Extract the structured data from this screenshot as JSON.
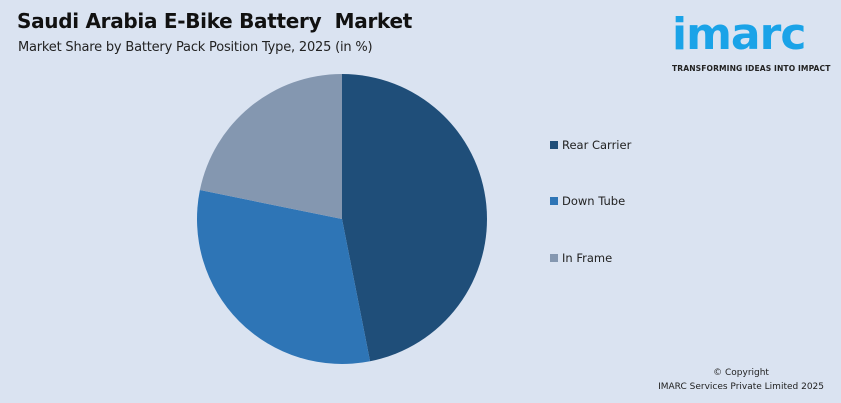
{
  "header": {
    "title": "Saudi Arabia E-Bike Battery  Market",
    "subtitle": "Market Share by Battery Pack Position Type, 2025 (in %)"
  },
  "logo": {
    "wordmark": "imarc",
    "tagline": "TRANSFORMING IDEAS INTO IMPACT",
    "color": "#1aa3e8"
  },
  "legend": {
    "items": [
      {
        "label": "Rear Carrier",
        "color": "#1f4e79"
      },
      {
        "label": "Down Tube",
        "color": "#2e75b6"
      },
      {
        "label": "In Frame",
        "color": "#8497b0"
      }
    ]
  },
  "footer": {
    "copyright_line1": "© Copyright",
    "copyright_line2": "IMARC Services Private Limited 2025"
  },
  "chart_data": {
    "type": "pie",
    "title": "Saudi Arabia E-Bike Battery  Market",
    "subtitle": "Market Share by Battery Pack Position Type, 2025 (in %)",
    "categories": [
      "Rear Carrier",
      "Down Tube",
      "In Frame"
    ],
    "values": [
      46.9,
      31.3,
      21.8
    ],
    "colors": [
      "#1f4e79",
      "#2e75b6",
      "#8497b0"
    ],
    "start_angle": "12 o'clock, clockwise",
    "legend_position": "right",
    "data_labels": false
  }
}
